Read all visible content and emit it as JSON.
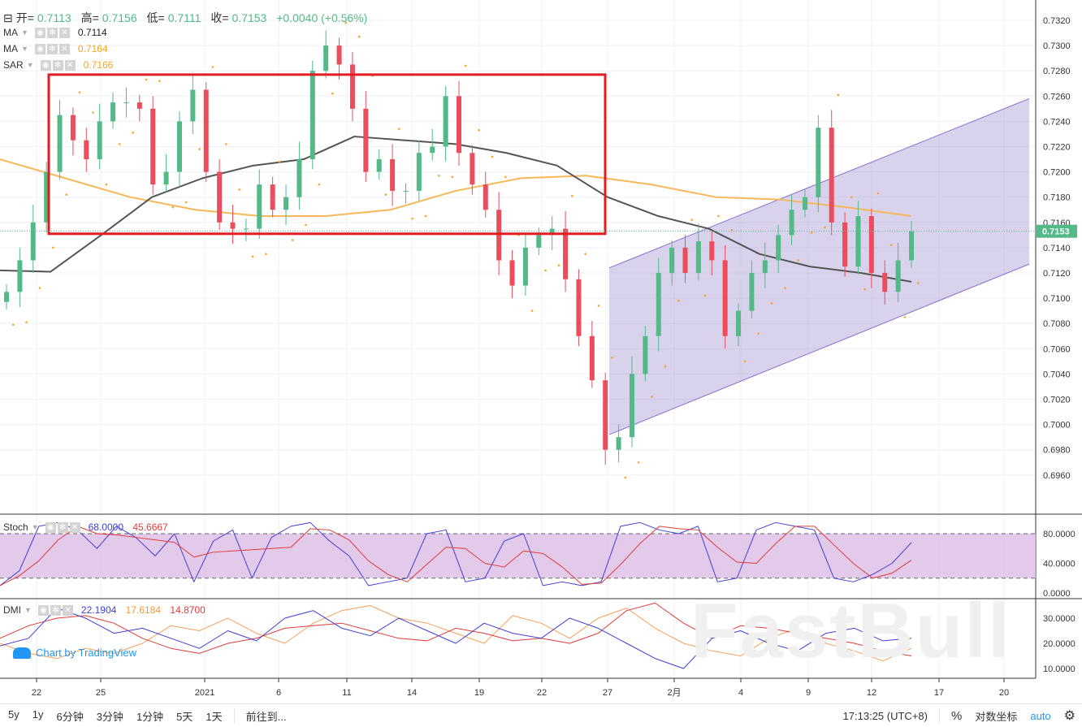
{
  "legend": {
    "ohlc": {
      "open_label": "开=",
      "open": "0.7113",
      "high_label": "高=",
      "high": "0.7156",
      "low_label": "低=",
      "low": "0.7111",
      "close_label": "收=",
      "close": "0.7153",
      "change": "+0.0040 (+0.56%)"
    },
    "indicators": [
      {
        "name": "MA",
        "value": "0.7114",
        "color": "#222222"
      },
      {
        "name": "MA",
        "value": "0.7164",
        "color": "#f5a623"
      },
      {
        "name": "SAR",
        "value": "0.7166",
        "color": "#f5a623"
      }
    ],
    "stoch": {
      "name": "Stoch",
      "k": "68.0000",
      "d": "45.6667"
    },
    "dmi": {
      "name": "DMI",
      "plus": "22.1904",
      "minus": "17.6184",
      "adx": "14.8700"
    }
  },
  "chart_data": [
    {
      "type": "candlestick",
      "price_ticks": [
        "0.7320",
        "0.7300",
        "0.7280",
        "0.7260",
        "0.7240",
        "0.7220",
        "0.7200",
        "0.7180",
        "0.7160",
        "0.7140",
        "0.7120",
        "0.7100",
        "0.7080",
        "0.7060",
        "0.7040",
        "0.7020",
        "0.7000",
        "0.6980",
        "0.6960"
      ],
      "ylim": [
        0.6945,
        0.7335
      ],
      "last_price": "0.7153",
      "x_ticks": [
        "22",
        "25",
        "2021",
        "6",
        "11",
        "14",
        "19",
        "22",
        "27",
        "2月",
        "4",
        "9",
        "12",
        "17",
        "20"
      ],
      "closes": [
        0.7105,
        0.713,
        0.716,
        0.72,
        0.7245,
        0.7225,
        0.721,
        0.724,
        0.7255,
        0.7255,
        0.725,
        0.719,
        0.72,
        0.724,
        0.7265,
        0.72,
        0.716,
        0.7155,
        0.7155,
        0.719,
        0.717,
        0.718,
        0.721,
        0.728,
        0.73,
        0.7285,
        0.725,
        0.72,
        0.721,
        0.7185,
        0.7185,
        0.7215,
        0.722,
        0.726,
        0.7215,
        0.719,
        0.717,
        0.713,
        0.711,
        0.714,
        0.715,
        0.7155,
        0.7115,
        0.707,
        0.7035,
        0.698,
        0.699,
        0.704,
        0.707,
        0.712,
        0.714,
        0.712,
        0.7145,
        0.713,
        0.707,
        0.709,
        0.712,
        0.713,
        0.715,
        0.717,
        0.718,
        0.7235,
        0.716,
        0.7125,
        0.7165,
        0.712,
        0.7105,
        0.713,
        0.7153
      ],
      "ma_black": [
        0.7122,
        0.7121,
        0.715,
        0.718,
        0.7195,
        0.7205,
        0.721,
        0.7228,
        0.7225,
        0.7222,
        0.7215,
        0.7205,
        0.718,
        0.7165,
        0.7155,
        0.7135,
        0.7125,
        0.712,
        0.7113
      ],
      "ma_orange": [
        0.721,
        0.7195,
        0.718,
        0.717,
        0.7165,
        0.7165,
        0.717,
        0.7185,
        0.7195,
        0.7197,
        0.719,
        0.718,
        0.7178,
        0.7172,
        0.7165
      ],
      "rectangle": {
        "top": 0.7277,
        "bottom": 0.7151,
        "color": "#e31b23"
      },
      "channel": {
        "start_low": 0.6992,
        "start_high": 0.7124,
        "end_high": 0.7258,
        "end_low": 0.7127,
        "fill": "#9f8fd0"
      },
      "colors": {
        "up": "#53b987",
        "down": "#eb4d5c",
        "sar": "#f5a623"
      }
    },
    {
      "type": "line",
      "name": "Stoch",
      "ticks": [
        "80.0000",
        "40.0000",
        "0.0000"
      ],
      "band": [
        20,
        80
      ],
      "k": [
        10,
        30,
        90,
        95,
        85,
        60,
        90,
        75,
        50,
        80,
        15,
        70,
        85,
        20,
        75,
        90,
        95,
        70,
        50,
        10,
        15,
        20,
        80,
        85,
        15,
        20,
        70,
        80,
        10,
        15,
        10,
        15,
        90,
        95,
        85,
        80,
        90,
        15,
        20,
        85,
        95,
        90,
        85,
        20,
        15,
        25,
        40,
        68
      ],
      "colors": {
        "k": "#3f3fd6",
        "d": "#e33b3b",
        "band": "#dcbde6"
      }
    },
    {
      "type": "line",
      "name": "DMI",
      "ticks": [
        "30.0000",
        "20.0000",
        "10.0000"
      ],
      "plus": [
        19,
        22,
        34,
        30,
        24,
        26,
        22,
        18,
        25,
        21,
        30,
        33,
        26,
        23,
        30,
        25,
        20,
        28,
        24,
        22,
        30,
        26,
        20,
        14,
        10,
        22,
        25,
        20,
        17,
        24,
        26,
        21,
        22
      ],
      "minus": [
        20,
        16,
        14,
        18,
        16,
        20,
        27,
        25,
        30,
        24,
        20,
        28,
        33,
        35,
        30,
        28,
        24,
        20,
        31,
        28,
        22,
        30,
        34,
        26,
        20,
        17,
        15,
        22,
        26,
        20,
        17,
        13,
        18
      ],
      "adx": [
        22,
        27,
        30,
        31,
        28,
        22,
        18,
        16,
        20,
        22,
        26,
        27,
        28,
        25,
        22,
        21,
        26,
        24,
        21,
        22,
        20,
        24,
        33,
        36,
        28,
        22,
        27,
        26,
        24,
        22,
        20,
        17,
        15
      ],
      "colors": {
        "plus": "#3f3fd6",
        "minus": "#f5a05a",
        "adx": "#e33b3b"
      }
    }
  ],
  "branding": {
    "tradingview": "Chart by TradingView",
    "watermark": "FastBull"
  },
  "toolbar": {
    "ranges": [
      "5y",
      "1y",
      "6分钟",
      "3分钟",
      "1分钟",
      "5天",
      "1天"
    ],
    "goto": "前往到...",
    "time": "17:13:25 (UTC+8)",
    "percent": "%",
    "log": "对数坐标",
    "auto": "auto"
  }
}
